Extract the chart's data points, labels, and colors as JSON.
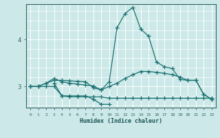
{
  "title": "",
  "xlabel": "Humidex (Indice chaleur)",
  "bg_color": "#cce8e8",
  "line_color": "#1a7070",
  "grid_color": "#ffffff",
  "xlim": [
    -0.5,
    23.5
  ],
  "ylim": [
    2.55,
    4.75
  ],
  "yticks": [
    3,
    4
  ],
  "xticks": [
    0,
    1,
    2,
    3,
    4,
    5,
    6,
    7,
    8,
    9,
    10,
    11,
    12,
    13,
    14,
    15,
    16,
    17,
    18,
    19,
    20,
    21,
    22,
    23
  ],
  "lines": [
    {
      "x": [
        0,
        1,
        2,
        3,
        4,
        5,
        6,
        7,
        8,
        9,
        10,
        11,
        12,
        13,
        14,
        15,
        16,
        17,
        18,
        19,
        20,
        21,
        22,
        23
      ],
      "y": [
        3.0,
        3.0,
        3.07,
        3.13,
        3.13,
        3.12,
        3.11,
        3.1,
        2.97,
        2.93,
        3.0,
        3.07,
        3.17,
        3.25,
        3.32,
        3.32,
        3.3,
        3.28,
        3.25,
        3.2,
        3.13,
        3.13,
        2.83,
        2.73
      ]
    },
    {
      "x": [
        0,
        1,
        2,
        3,
        4,
        5,
        6,
        7,
        8,
        9,
        10,
        11,
        12,
        13,
        14,
        15,
        16,
        17,
        18,
        19,
        20,
        21,
        22,
        23
      ],
      "y": [
        3.0,
        3.0,
        3.07,
        3.17,
        3.1,
        3.07,
        3.05,
        3.03,
        3.01,
        2.93,
        3.1,
        4.25,
        4.55,
        4.68,
        4.22,
        4.07,
        3.52,
        3.42,
        3.38,
        3.15,
        3.13,
        3.13,
        2.83,
        2.73
      ]
    },
    {
      "x": [
        0,
        1,
        2,
        3,
        4,
        5,
        6,
        7,
        8,
        9,
        10,
        11,
        12,
        13,
        14,
        15,
        16,
        17,
        18,
        19,
        20,
        21,
        22,
        23
      ],
      "y": [
        3.0,
        3.0,
        3.0,
        3.0,
        2.8,
        2.78,
        2.78,
        2.78,
        2.78,
        2.78,
        2.75,
        2.75,
        2.75,
        2.75,
        2.75,
        2.75,
        2.75,
        2.75,
        2.75,
        2.75,
        2.75,
        2.75,
        2.75,
        2.75
      ]
    },
    {
      "x": [
        3,
        4,
        5,
        6,
        7,
        8,
        9,
        10
      ],
      "y": [
        3.07,
        2.8,
        2.8,
        2.8,
        2.8,
        2.73,
        2.62,
        2.62
      ]
    }
  ]
}
